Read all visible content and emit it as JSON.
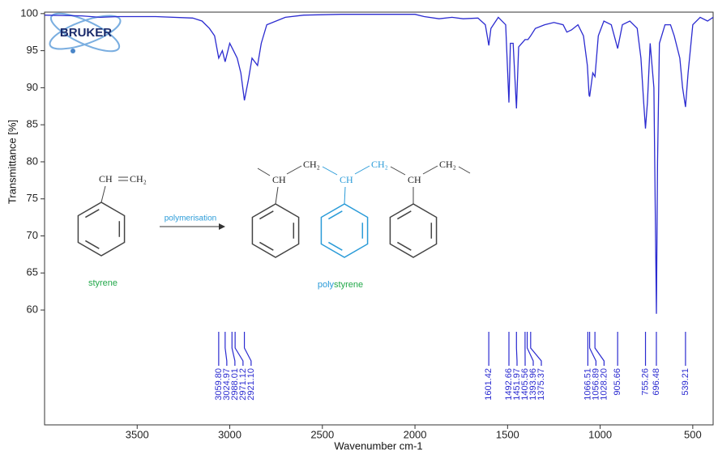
{
  "chart_data": {
    "type": "line",
    "color": "#2b2bd0",
    "x_label": "Wavenumber cm-1",
    "y_label": "Transmittance [%]",
    "xlim": [
      4000,
      390
    ],
    "ylim": [
      44.5,
      100.2
    ],
    "xticks": [
      3500,
      3000,
      2500,
      2000,
      1500,
      1000,
      500
    ],
    "yticks": [
      60,
      65,
      70,
      75,
      80,
      85,
      90,
      95,
      100
    ],
    "x": [
      4000,
      3800,
      3700,
      3600,
      3400,
      3200,
      3150,
      3110,
      3082,
      3059.8,
      3040,
      3024.97,
      3000,
      2980,
      2960,
      2940,
      2921.1,
      2900,
      2880,
      2850,
      2830,
      2800,
      2700,
      2600,
      2400,
      2000,
      1950,
      1870,
      1800,
      1740,
      1660,
      1620,
      1601.42,
      1590,
      1550,
      1510,
      1492.66,
      1485,
      1470,
      1451.97,
      1440,
      1405.56,
      1390,
      1375.37,
      1350,
      1300,
      1250,
      1200,
      1180,
      1155,
      1120,
      1090,
      1069,
      1060,
      1056.89,
      1040,
      1028.2,
      1010,
      980,
      940,
      905.66,
      880,
      840,
      800,
      780,
      765,
      755.26,
      745,
      730,
      710,
      696.48,
      690,
      680,
      650,
      620,
      600,
      570,
      555,
      539.21,
      525,
      500,
      460,
      420,
      390
    ],
    "values": [
      99.8,
      99.7,
      99.5,
      99.6,
      99.6,
      99.4,
      99,
      98,
      97,
      94,
      95,
      93.5,
      96,
      95,
      94,
      92,
      88.3,
      91,
      94,
      93,
      96,
      98.5,
      99.5,
      99.8,
      99.9,
      99.9,
      99.6,
      99.3,
      99.5,
      99.3,
      99.4,
      98.5,
      95.7,
      98,
      99.5,
      98.5,
      88,
      96,
      96,
      87.2,
      95.5,
      96.5,
      96.5,
      97,
      98,
      98.5,
      98.8,
      98.5,
      97.5,
      97.8,
      98.5,
      97,
      93,
      89,
      88.8,
      92,
      91.5,
      97,
      99,
      98.5,
      95.3,
      98.5,
      99,
      98,
      94,
      88,
      84.5,
      88,
      96,
      90,
      59.5,
      80,
      96,
      98.5,
      98.5,
      97,
      94,
      90,
      87.4,
      92,
      98.5,
      99.5,
      99,
      99.5
    ],
    "peaks": {
      "values": [
        3059.8,
        3024.97,
        2988.01,
        2971.12,
        2921.1,
        1601.42,
        1492.66,
        1451.97,
        1405.56,
        1393.96,
        1375.37,
        1066.51,
        1056.89,
        1028.2,
        905.66,
        755.26,
        696.48,
        539.21
      ],
      "value_labels": [
        "3059.80",
        "3024.97",
        "2988.01",
        "2971.12",
        "2921.10",
        "1601.42",
        "1492.66",
        "1451.97",
        "1405.56",
        "1393.96",
        "1375.37",
        "1066.51",
        "1056.89",
        "1028.20",
        "905.66",
        "755.26",
        "696.48",
        "539.21"
      ]
    },
    "annotations": {
      "logo": "BRUKER",
      "ch": "CH",
      "ch2": "CH₂",
      "arrow_label": "polymerisation",
      "monomer": "styrene",
      "polymer_prefix": "poly",
      "polymer_suffix": "styrene"
    }
  }
}
